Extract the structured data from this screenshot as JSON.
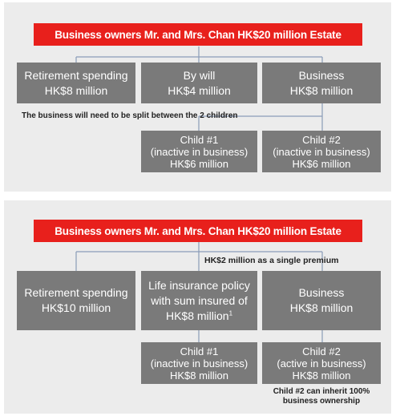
{
  "top_diagram": {
    "header": "Business owners Mr. and Mrs. Chan HK$20 million Estate",
    "boxes": {
      "retirement": {
        "line1": "Retirement spending",
        "line2": "HK$8 million"
      },
      "will": {
        "line1": "By will",
        "line2": "HK$4 million"
      },
      "business": {
        "line1": "Business",
        "line2": "HK$8 million"
      }
    },
    "note": "The business will need to be split between the 2 children",
    "children": {
      "child1": {
        "line1": "Child #1",
        "line2": "(inactive in business)",
        "line3": "HK$6 million"
      },
      "child2": {
        "line1": "Child #2",
        "line2": "(inactive in business)",
        "line3": "HK$6 million"
      }
    }
  },
  "bottom_diagram": {
    "header": "Business owners Mr. and Mrs. Chan HK$20 million Estate",
    "premium_note": "HK$2 million as a single premium",
    "boxes": {
      "retirement": {
        "line1": "Retirement spending",
        "line2": "HK$10 million"
      },
      "insurance": {
        "line1": "Life insurance policy",
        "line2": "with sum insured of",
        "line3": "HK$8 million",
        "footnote": "1"
      },
      "business": {
        "line1": "Business",
        "line2": "HK$8 million"
      }
    },
    "children": {
      "child1": {
        "line1": "Child #1",
        "line2": "(inactive in business)",
        "line3": "HK$8 million"
      },
      "child2": {
        "line1": "Child #2",
        "line2": "(active in business)",
        "line3": "HK$8 million"
      }
    },
    "ownership_note": {
      "line1": "Child #2 can inherit 100%",
      "line2": "business ownership"
    }
  },
  "colors": {
    "header_bg": "#e8201c",
    "box_bg": "#7a7a7a",
    "line": "#8a9cb8",
    "panel_bg": "#ececec"
  }
}
